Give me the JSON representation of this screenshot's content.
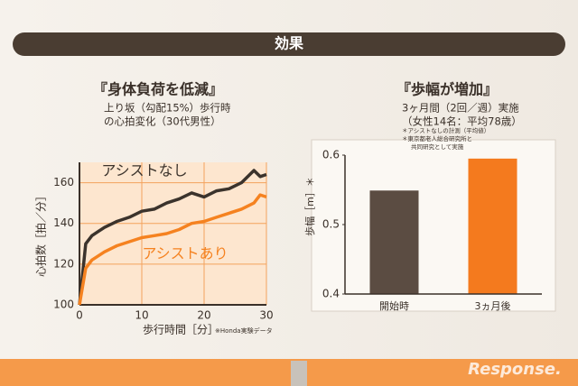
{
  "header": "効果",
  "watermark": "Response.",
  "chart_data": [
    {
      "type": "line",
      "title": "『身体負荷を低減』",
      "subtitle": [
        "上り坂（勾配15%）歩行時",
        "の心拍変化（30代男性）"
      ],
      "y_label": "心拍数［拍／分］",
      "x_label": "歩行時間［分］",
      "note": "※Honda実験データ",
      "x": [
        0,
        1,
        2,
        3,
        4,
        6,
        8,
        10,
        12,
        14,
        16,
        18,
        20,
        22,
        24,
        26,
        28,
        29,
        30
      ],
      "series": [
        {
          "name": "アシストなし",
          "color": "#3b332c",
          "values": [
            100,
            130,
            134,
            136,
            138,
            141,
            143,
            146,
            147,
            150,
            152,
            155,
            153,
            156,
            157,
            160,
            166,
            163,
            164
          ]
        },
        {
          "name": "アシストあり",
          "color": "#f58220",
          "values": [
            100,
            118,
            122,
            124,
            126,
            129,
            131,
            133,
            134,
            135,
            137,
            140,
            141,
            143,
            145,
            147,
            150,
            154,
            153
          ]
        }
      ],
      "xlim": [
        0,
        30
      ],
      "xticks": [
        0,
        10,
        20,
        30
      ],
      "ylim": [
        100,
        170
      ],
      "yticks": [
        100,
        120,
        140,
        160
      ],
      "grid": true
    },
    {
      "type": "bar",
      "title": "『歩幅が増加』",
      "subtitle": [
        "3ヶ月間（2回／週）実施",
        "（女性14名：平均78歳）"
      ],
      "notes": [
        "＊アシストなしの計測（平均値）",
        "＊東京都老人総合研究所と",
        "共同研究として実施"
      ],
      "y_label": "歩幅［m］＊",
      "categories": [
        "開始時",
        "3ヵ月後"
      ],
      "values": [
        0.549,
        0.595
      ],
      "colors": [
        "#5b4c42",
        "#f47a1e"
      ],
      "ylim": [
        0.4,
        0.6
      ],
      "yticks": [
        0.4,
        0.5,
        0.6
      ],
      "grid": false
    }
  ]
}
